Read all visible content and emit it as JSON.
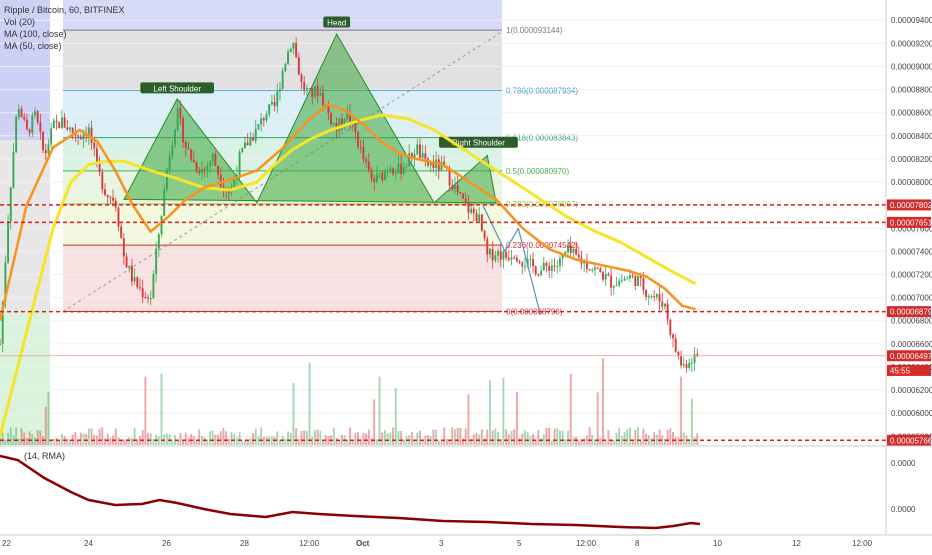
{
  "header": {
    "symbol": "Ripple / Bitcoin, 60, BITFINEX",
    "vol": "Vol (20)",
    "ma100": "MA (100, close)",
    "ma50": "MA (50, close)"
  },
  "indicator": {
    "label": "(14, RMA)",
    "ticks": [
      "0.0000",
      "0.0000"
    ]
  },
  "price_axis": {
    "ticks": [
      "0.000094000",
      "0.000092000",
      "0.000090000",
      "0.000088000",
      "0.000086000",
      "0.000084000",
      "0.000082000",
      "0.000080000",
      "0.000078000",
      "0.000076000",
      "0.000074000",
      "0.000072000",
      "0.000070000",
      "0.000068000",
      "0.000066000",
      "0.000064000",
      "0.000062000",
      "0.000060000",
      "0.000058000"
    ],
    "tick_values": [
      9.4e-05,
      9.2e-05,
      9e-05,
      8.8e-05,
      8.6e-05,
      8.4e-05,
      8.2e-05,
      8e-05,
      7.8e-05,
      7.6e-05,
      7.4e-05,
      7.2e-05,
      7e-05,
      6.8e-05,
      6.6e-05,
      6.4e-05,
      6.2e-05,
      6e-05,
      5.8e-05
    ],
    "range": [
      5.725e-05,
      9.575e-05
    ]
  },
  "time_axis": {
    "labels": [
      "22",
      "24",
      "26",
      "28",
      "12:00",
      "Oct",
      "3",
      "5",
      "12:00",
      "8",
      "10",
      "12",
      "12:00"
    ]
  },
  "price_badges": [
    {
      "text": "0.00007802",
      "value": 7.802e-05,
      "color": "#d62a2a"
    },
    {
      "text": "0.00007651",
      "value": 7.651e-05,
      "color": "#d62a2a"
    },
    {
      "text": "0.00006879",
      "value": 6.879e-05,
      "color": "#d62a2a"
    },
    {
      "text": "0.00006497",
      "value": 6.497e-05,
      "color": "#d62a2a"
    },
    {
      "text": "45:55",
      "value": 6.37e-05,
      "color": "#d62a2a"
    },
    {
      "text": "0.00005766",
      "value": 5.766e-05,
      "color": "#d62a2a"
    }
  ],
  "fibonacci": {
    "levels": [
      {
        "text": "1(0.000093144)",
        "value": 9.3144e-05,
        "color": "#7a7a7a"
      },
      {
        "text": "0.786(0.000087934)",
        "value": 8.7934e-05,
        "color": "#2a96c8"
      },
      {
        "text": "0.618(0.000083843)",
        "value": 8.3843e-05,
        "color": "#2aa66b"
      },
      {
        "text": "0.5(0.000080970)",
        "value": 8.097e-05,
        "color": "#4caf50"
      },
      {
        "text": "0.382(0.000078097)",
        "value": 7.8097e-05,
        "color": "#9bbf2a"
      },
      {
        "text": "0.236(0.000074542)",
        "value": 7.4542e-05,
        "color": "#d62a2a"
      },
      {
        "text": "0(0.000068796)",
        "value": 6.8796e-05,
        "color": "#d62a2a"
      }
    ]
  },
  "pattern_labels": {
    "head": "Head",
    "left_shoulder": "Left Shoulder",
    "right_shoulder": "Right Shoulder"
  },
  "colors": {
    "ma50": "#f7931e",
    "ma100": "#f5e625",
    "up": "#33a853",
    "down": "#d9383a",
    "pattern": "#3aa63a",
    "dashed": "#d61f1f"
  },
  "chart_data": {
    "type": "candlestick",
    "title": "Ripple / Bitcoin, 60, BITFINEX",
    "x_labels": [
      "22",
      "24",
      "26",
      "28",
      "12:00",
      "Oct",
      "3",
      "5",
      "12:00",
      "8",
      "10",
      "12",
      "12:00"
    ],
    "ylim": [
      5.725e-05,
      9.575e-05
    ],
    "close_path": [
      [
        0.0,
        6.6e-05
      ],
      [
        0.01,
        7.8e-05
      ],
      [
        0.02,
        8.7e-05
      ],
      [
        0.03,
        8.42e-05
      ],
      [
        0.04,
        8.58e-05
      ],
      [
        0.05,
        8.22e-05
      ],
      [
        0.06,
        8.48e-05
      ],
      [
        0.07,
        8.52e-05
      ],
      [
        0.08,
        8.45e-05
      ],
      [
        0.09,
        8.4e-05
      ],
      [
        0.1,
        8.46e-05
      ],
      [
        0.11,
        8.1e-05
      ],
      [
        0.12,
        7.9e-05
      ],
      [
        0.13,
        7.85e-05
      ],
      [
        0.14,
        7.35e-05
      ],
      [
        0.15,
        7.15e-05
      ],
      [
        0.16,
        7.05e-05
      ],
      [
        0.17,
        7e-05
      ],
      [
        0.18,
        7.6e-05
      ],
      [
        0.19,
        8.2e-05
      ],
      [
        0.2,
        8.6e-05
      ],
      [
        0.21,
        8.3e-05
      ],
      [
        0.22,
        8.15e-05
      ],
      [
        0.23,
        8.1e-05
      ],
      [
        0.24,
        8.22e-05
      ],
      [
        0.25,
        8e-05
      ],
      [
        0.26,
        7.9e-05
      ],
      [
        0.27,
        8.2e-05
      ],
      [
        0.28,
        8.35e-05
      ],
      [
        0.29,
        8.45e-05
      ],
      [
        0.3,
        8.6e-05
      ],
      [
        0.31,
        8.65e-05
      ],
      [
        0.32,
        9e-05
      ],
      [
        0.33,
        9.25e-05
      ],
      [
        0.34,
        8.85e-05
      ],
      [
        0.35,
        8.75e-05
      ],
      [
        0.36,
        8.8e-05
      ],
      [
        0.37,
        8.6e-05
      ],
      [
        0.38,
        8.45e-05
      ],
      [
        0.39,
        8.6e-05
      ],
      [
        0.4,
        8.45e-05
      ],
      [
        0.41,
        8.2e-05
      ],
      [
        0.42,
        8e-05
      ],
      [
        0.43,
        8.05e-05
      ],
      [
        0.44,
        8.15e-05
      ],
      [
        0.45,
        8.1e-05
      ],
      [
        0.46,
        8.18e-05
      ],
      [
        0.47,
        8.3e-05
      ],
      [
        0.48,
        8.15e-05
      ],
      [
        0.49,
        8.15e-05
      ],
      [
        0.5,
        8.12e-05
      ],
      [
        0.51,
        8e-05
      ],
      [
        0.52,
        7.85e-05
      ],
      [
        0.53,
        7.75e-05
      ],
      [
        0.54,
        7.7e-05
      ],
      [
        0.55,
        7.35e-05
      ],
      [
        0.56,
        7.4e-05
      ],
      [
        0.57,
        7.35e-05
      ],
      [
        0.58,
        7.4e-05
      ],
      [
        0.59,
        7.32e-05
      ],
      [
        0.6,
        7.27e-05
      ],
      [
        0.61,
        7.23e-05
      ],
      [
        0.62,
        7.28e-05
      ],
      [
        0.63,
        7.28e-05
      ],
      [
        0.64,
        7.4e-05
      ],
      [
        0.65,
        7.35e-05
      ],
      [
        0.66,
        7.3e-05
      ],
      [
        0.67,
        7.25e-05
      ],
      [
        0.68,
        7.2e-05
      ],
      [
        0.69,
        7.13e-05
      ],
      [
        0.7,
        7.15e-05
      ],
      [
        0.71,
        7.18e-05
      ],
      [
        0.72,
        7.15e-05
      ],
      [
        0.73,
        7.05e-05
      ],
      [
        0.74,
        7e-05
      ],
      [
        0.75,
        6.95e-05
      ],
      [
        0.76,
        6.6e-05
      ],
      [
        0.77,
        6.4e-05
      ],
      [
        0.78,
        6.48e-05
      ],
      [
        0.79,
        6.5e-05
      ]
    ],
    "ma50": [
      [
        0.0,
        6.8e-05
      ],
      [
        0.03,
        7.8e-05
      ],
      [
        0.06,
        8.3e-05
      ],
      [
        0.09,
        8.45e-05
      ],
      [
        0.11,
        8.35e-05
      ],
      [
        0.13,
        8.1e-05
      ],
      [
        0.15,
        7.8e-05
      ],
      [
        0.17,
        7.57e-05
      ],
      [
        0.19,
        7.7e-05
      ],
      [
        0.21,
        7.85e-05
      ],
      [
        0.23,
        7.95e-05
      ],
      [
        0.26,
        8.02e-05
      ],
      [
        0.29,
        8.1e-05
      ],
      [
        0.32,
        8.3e-05
      ],
      [
        0.35,
        8.55e-05
      ],
      [
        0.37,
        8.67e-05
      ],
      [
        0.39,
        8.62e-05
      ],
      [
        0.41,
        8.5e-05
      ],
      [
        0.43,
        8.35e-05
      ],
      [
        0.45,
        8.25e-05
      ],
      [
        0.47,
        8.2e-05
      ],
      [
        0.5,
        8.15e-05
      ],
      [
        0.53,
        8e-05
      ],
      [
        0.56,
        7.85e-05
      ],
      [
        0.59,
        7.6e-05
      ],
      [
        0.62,
        7.42e-05
      ],
      [
        0.65,
        7.33e-05
      ],
      [
        0.68,
        7.28e-05
      ],
      [
        0.71,
        7.23e-05
      ],
      [
        0.73,
        7.18e-05
      ],
      [
        0.75,
        7.08e-05
      ],
      [
        0.77,
        6.93e-05
      ],
      [
        0.785,
        6.9e-05
      ]
    ],
    "ma100": [
      [
        0.0,
        5.8e-05
      ],
      [
        0.02,
        6.4e-05
      ],
      [
        0.04,
        7e-05
      ],
      [
        0.06,
        7.6e-05
      ],
      [
        0.08,
        8e-05
      ],
      [
        0.1,
        8.15e-05
      ],
      [
        0.12,
        8.18e-05
      ],
      [
        0.14,
        8.18e-05
      ],
      [
        0.17,
        8.1e-05
      ],
      [
        0.2,
        8.03e-05
      ],
      [
        0.23,
        7.95e-05
      ],
      [
        0.26,
        7.93e-05
      ],
      [
        0.29,
        8e-05
      ],
      [
        0.31,
        8.15e-05
      ],
      [
        0.33,
        8.28e-05
      ],
      [
        0.35,
        8.37e-05
      ],
      [
        0.37,
        8.44e-05
      ],
      [
        0.4,
        8.52e-05
      ],
      [
        0.43,
        8.58e-05
      ],
      [
        0.46,
        8.55e-05
      ],
      [
        0.49,
        8.45e-05
      ],
      [
        0.52,
        8.3e-05
      ],
      [
        0.55,
        8.15e-05
      ],
      [
        0.58,
        8e-05
      ],
      [
        0.61,
        7.85e-05
      ],
      [
        0.64,
        7.7e-05
      ],
      [
        0.67,
        7.58e-05
      ],
      [
        0.7,
        7.48e-05
      ],
      [
        0.73,
        7.35e-05
      ],
      [
        0.76,
        7.22e-05
      ],
      [
        0.785,
        7.12e-05
      ]
    ]
  }
}
